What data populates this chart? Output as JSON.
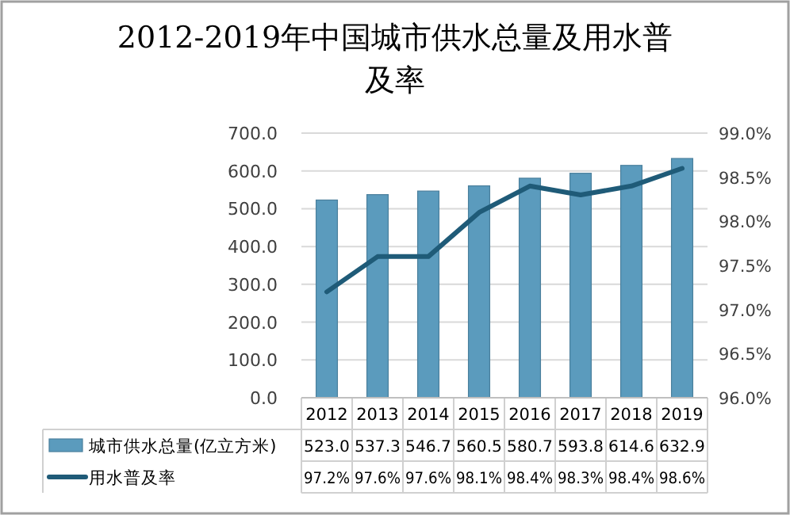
{
  "chart_data": {
    "type": "bar",
    "title": "2012-2019年中国城市供水总量及用水普及率",
    "categories": [
      "2012",
      "2013",
      "2014",
      "2015",
      "2016",
      "2017",
      "2018",
      "2019"
    ],
    "series": [
      {
        "name": "城市供水总量(亿立方米)",
        "color": "#5b9bbd",
        "values": [
          523.0,
          537.3,
          546.7,
          560.5,
          580.7,
          593.8,
          614.6,
          632.9
        ],
        "value_labels": [
          "523.0",
          "537.3",
          "546.7",
          "560.5",
          "580.7",
          "593.8",
          "614.6",
          "632.9"
        ]
      },
      {
        "name": "用水普及率",
        "type": "line",
        "axis": "y2",
        "color": "#1f5b78",
        "values": [
          97.2,
          97.6,
          97.6,
          98.1,
          98.4,
          98.3,
          98.4,
          98.6
        ],
        "value_labels": [
          "97.2%",
          "97.6%",
          "97.6%",
          "98.1%",
          "98.4%",
          "98.3%",
          "98.4%",
          "98.6%"
        ]
      }
    ],
    "ylim": [
      0,
      700
    ],
    "yticks": [
      {
        "value": 0,
        "label": "0.0"
      },
      {
        "value": 100,
        "label": "100.0"
      },
      {
        "value": 200,
        "label": "200.0"
      },
      {
        "value": 300,
        "label": "300.0"
      },
      {
        "value": 400,
        "label": "400.0"
      },
      {
        "value": 500,
        "label": "500.0"
      },
      {
        "value": 600,
        "label": "600.0"
      },
      {
        "value": 700,
        "label": "700.0"
      }
    ],
    "y2lim": [
      96.0,
      99.0
    ],
    "y2ticks": [
      {
        "value": 96.0,
        "label": "96.0%"
      },
      {
        "value": 96.5,
        "label": "96.5%"
      },
      {
        "value": 97.0,
        "label": "97.0%"
      },
      {
        "value": 97.5,
        "label": "97.5%"
      },
      {
        "value": 98.0,
        "label": "98.0%"
      },
      {
        "value": 98.5,
        "label": "98.5%"
      },
      {
        "value": 99.0,
        "label": "99.0%"
      }
    ],
    "grid": "y",
    "legend": "bottom",
    "line_style": "solid",
    "marker": "none"
  }
}
